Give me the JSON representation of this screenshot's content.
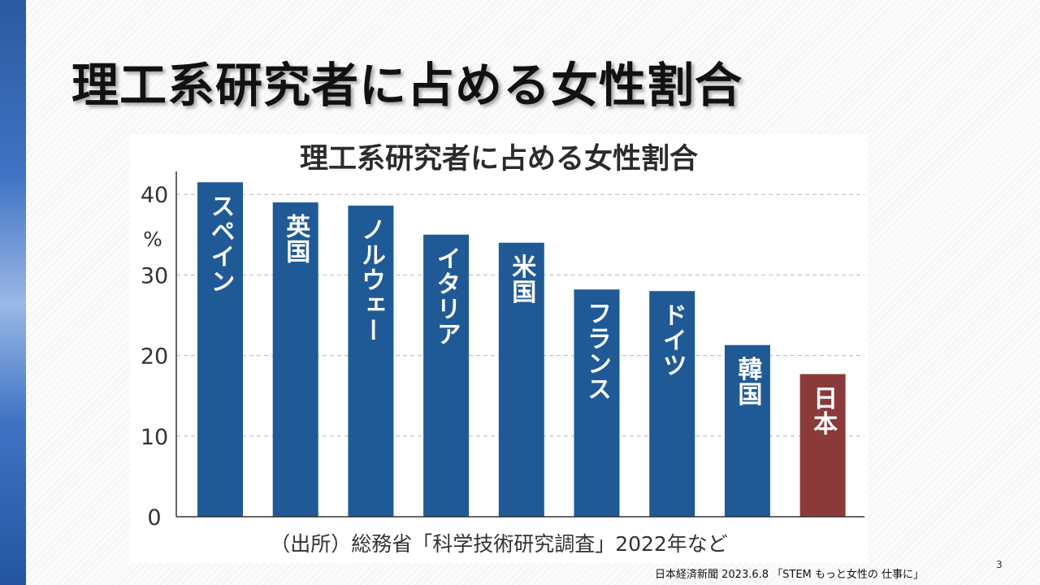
{
  "slide": {
    "title": "理工系研究者に占める女性割合",
    "footer": "日本経済新聞 2023.6.8 「STEM もっと女性の 仕事に」",
    "page_number": "3"
  },
  "chart_data": {
    "type": "bar",
    "title": "理工系研究者に占める女性割合",
    "unit": "%",
    "categories": [
      "スペイン",
      "英国",
      "ノルウェー",
      "イタリア",
      "米国",
      "フランス",
      "ドイツ",
      "韓国",
      "日本"
    ],
    "values": [
      41.5,
      39.0,
      38.6,
      35.0,
      34.0,
      28.2,
      28.0,
      21.3,
      17.7
    ],
    "yticks": [
      0,
      10,
      20,
      30,
      40
    ],
    "ylim": [
      0,
      42
    ],
    "grid": true,
    "source": "（出所）総務省「科学技術研究調査」2022年など",
    "colors": {
      "bar": "#1f5a96",
      "highlight": "#8b3a3a",
      "highlight_category": "日本",
      "grid": "#b8b8b8",
      "axis": "#333333"
    }
  }
}
